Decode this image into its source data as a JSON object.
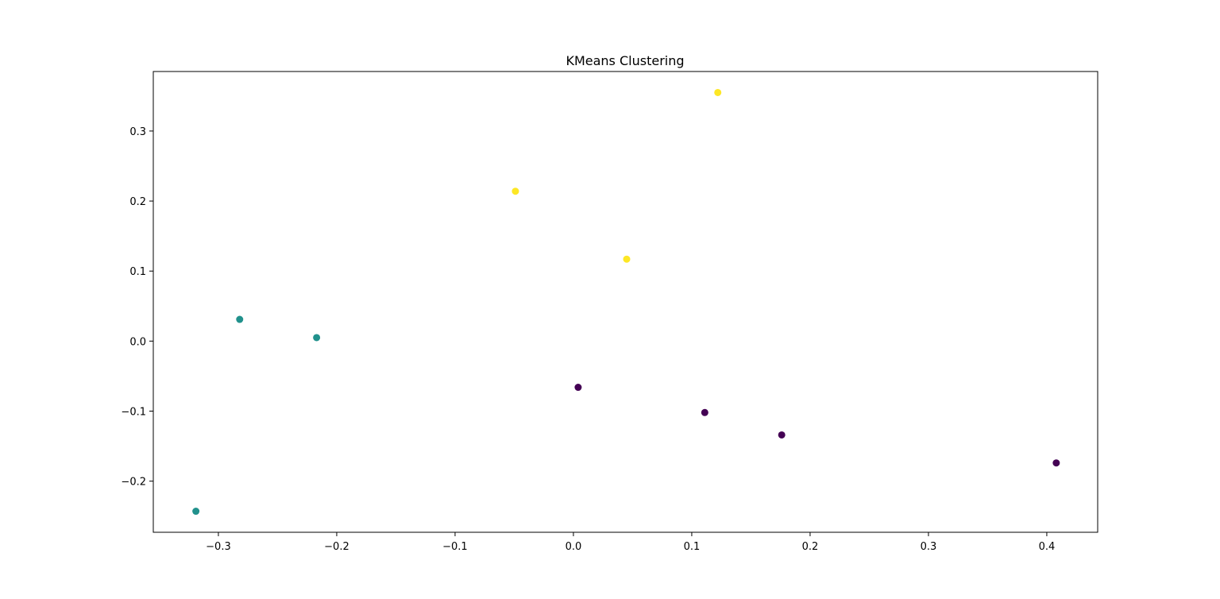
{
  "chart_data": {
    "type": "scatter",
    "title": "KMeans Clustering",
    "xlabel": "",
    "ylabel": "",
    "xlim": [
      -0.355,
      0.443
    ],
    "ylim": [
      -0.273,
      0.385
    ],
    "x_ticks": [
      -0.3,
      -0.2,
      -0.1,
      0.0,
      0.1,
      0.2,
      0.3,
      0.4
    ],
    "x_tick_labels": [
      "−0.3",
      "−0.2",
      "−0.1",
      "0.0",
      "0.1",
      "0.2",
      "0.3",
      "0.4"
    ],
    "y_ticks": [
      -0.2,
      -0.1,
      0.0,
      0.1,
      0.2,
      0.3
    ],
    "y_tick_labels": [
      "−0.2",
      "−0.1",
      "0.0",
      "0.1",
      "0.2",
      "0.3"
    ],
    "grid": false,
    "legend": false,
    "cluster_colors": [
      "#440154",
      "#21918c",
      "#fde725"
    ],
    "points": [
      {
        "x": 0.122,
        "y": 0.355,
        "cluster": 2
      },
      {
        "x": -0.049,
        "y": 0.214,
        "cluster": 2
      },
      {
        "x": 0.045,
        "y": 0.117,
        "cluster": 2
      },
      {
        "x": -0.282,
        "y": 0.031,
        "cluster": 1
      },
      {
        "x": -0.217,
        "y": 0.005,
        "cluster": 1
      },
      {
        "x": -0.319,
        "y": -0.243,
        "cluster": 1
      },
      {
        "x": 0.004,
        "y": -0.066,
        "cluster": 0
      },
      {
        "x": 0.111,
        "y": -0.102,
        "cluster": 0
      },
      {
        "x": 0.176,
        "y": -0.134,
        "cluster": 0
      },
      {
        "x": 0.408,
        "y": -0.174,
        "cluster": 0
      }
    ]
  }
}
